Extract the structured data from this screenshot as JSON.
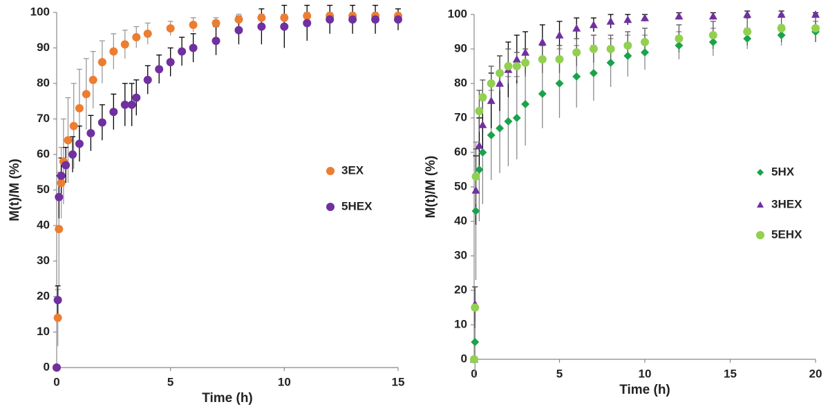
{
  "chart_data": [
    {
      "type": "scatter",
      "xlabel": "Time (h)",
      "ylabel": "M(t)/M (%)",
      "xlim": [
        0,
        15
      ],
      "ylim": [
        0,
        100
      ],
      "xticks": [
        0,
        5,
        10,
        15
      ],
      "yticks": [
        0,
        10,
        20,
        30,
        40,
        50,
        60,
        70,
        80,
        90,
        100
      ],
      "series": [
        {
          "name": "3EX",
          "color": "#ed7d31",
          "marker": "circle",
          "error_color": "#999999",
          "x": [
            0,
            0.05,
            0.1,
            0.2,
            0.3,
            0.5,
            0.75,
            1,
            1.3,
            1.6,
            2,
            2.5,
            3,
            3.5,
            4,
            5,
            6,
            7,
            8,
            9,
            10,
            11,
            12,
            13,
            14,
            15
          ],
          "values": [
            0,
            14,
            39,
            52,
            58,
            64,
            68,
            73,
            77,
            81,
            86,
            89,
            91,
            93,
            94,
            95.5,
            96.5,
            97,
            98,
            98.5,
            98.5,
            99,
            99,
            99,
            99,
            99
          ],
          "errors": [
            0,
            8,
            16,
            10,
            12,
            12,
            12,
            11,
            10,
            8,
            6,
            5,
            4,
            3,
            3,
            2,
            2,
            1.5,
            1.5,
            1,
            1,
            1,
            1,
            1,
            1,
            1
          ]
        },
        {
          "name": "5HEX",
          "color": "#7030a0",
          "marker": "circle",
          "error_color": "#000000",
          "x": [
            0,
            0.05,
            0.1,
            0.2,
            0.4,
            0.7,
            1,
            1.5,
            2,
            2.5,
            3,
            3.3,
            3.5,
            4,
            4.5,
            5,
            5.5,
            6,
            7,
            8,
            9,
            10,
            11,
            12,
            13,
            14,
            15
          ],
          "values": [
            0,
            19,
            48,
            54,
            57,
            60,
            63,
            66,
            69,
            72,
            74,
            74,
            76,
            81,
            84,
            86,
            89,
            90,
            92,
            95,
            96,
            96,
            97,
            98,
            98,
            98,
            98
          ],
          "errors": [
            0,
            4,
            6,
            5,
            5,
            5,
            5,
            5,
            5,
            5,
            6,
            6,
            5,
            4,
            4,
            4,
            4,
            4,
            4,
            4,
            5,
            6,
            5,
            4,
            4,
            4,
            3
          ]
        }
      ]
    },
    {
      "type": "scatter",
      "xlabel": "Time (h)",
      "ylabel": "M(t)/M (%)",
      "xlim": [
        0,
        20
      ],
      "ylim": [
        0,
        100
      ],
      "xticks": [
        0,
        5,
        10,
        15,
        20
      ],
      "yticks": [
        0,
        10,
        20,
        30,
        40,
        50,
        60,
        70,
        80,
        90,
        100
      ],
      "series": [
        {
          "name": "5HX",
          "color": "#1aa34a",
          "marker": "diamond",
          "error_color": "#888888",
          "x": [
            0,
            0.05,
            0.1,
            0.3,
            0.5,
            1,
            1.5,
            2,
            2.5,
            3,
            4,
            5,
            6,
            7,
            8,
            9,
            10,
            12,
            14,
            16,
            18,
            20
          ],
          "values": [
            0,
            5,
            43,
            55,
            60,
            65,
            67,
            69,
            70,
            74,
            77,
            80,
            82,
            83,
            86,
            88,
            89,
            91,
            92,
            93,
            94,
            95
          ],
          "errors": [
            0,
            10,
            20,
            15,
            15,
            13,
            13,
            13,
            12,
            12,
            10,
            10,
            9,
            8,
            7,
            6,
            5,
            4,
            4,
            3,
            3,
            3
          ]
        },
        {
          "name": "3HEX",
          "color": "#7030a0",
          "marker": "triangle",
          "error_color": "#000000",
          "x": [
            0,
            0.05,
            0.1,
            0.3,
            0.5,
            1,
            1.5,
            2,
            2.5,
            3,
            4,
            5,
            6,
            7,
            8,
            9,
            10,
            12,
            14,
            16,
            18,
            20
          ],
          "values": [
            0,
            16,
            49,
            62,
            68,
            75,
            80,
            84,
            87,
            89,
            92,
            94,
            96,
            97,
            98,
            98.5,
            99,
            99.5,
            99.5,
            100,
            100,
            100
          ],
          "errors": [
            0,
            5,
            10,
            8,
            8,
            8,
            8,
            8,
            7,
            6,
            5,
            4,
            3,
            2,
            2,
            1.5,
            1,
            1,
            1,
            1,
            1,
            0.5
          ]
        },
        {
          "name": "5EHX",
          "color": "#92d050",
          "marker": "circle",
          "error_color": "#555555",
          "x": [
            0,
            0.05,
            0.1,
            0.3,
            0.5,
            1,
            1.5,
            2,
            2.5,
            3,
            4,
            5,
            6,
            7,
            8,
            9,
            10,
            12,
            14,
            16,
            18,
            20
          ],
          "values": [
            0,
            15,
            53,
            72,
            76,
            80,
            83,
            85,
            85,
            86,
            87,
            87,
            89,
            90,
            90,
            91,
            92,
            93,
            94,
            95,
            96,
            96
          ],
          "errors": [
            0,
            6,
            8,
            6,
            5,
            5,
            5,
            5,
            4,
            4,
            4,
            4,
            4,
            4,
            4,
            4,
            4,
            4,
            4,
            4,
            4,
            4
          ]
        }
      ]
    }
  ]
}
